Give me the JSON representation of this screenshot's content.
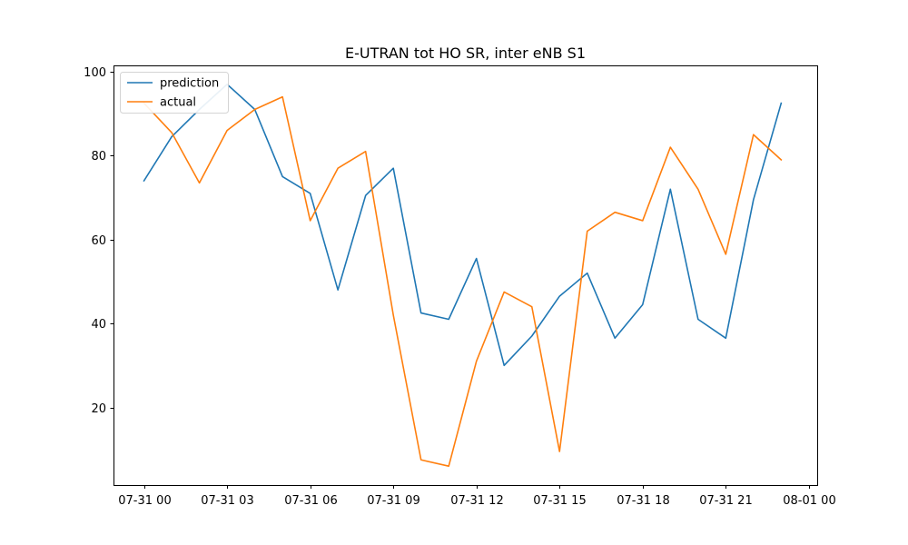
{
  "chart_data": {
    "type": "line",
    "title": "E-UTRAN tot HO SR, inter eNB S1",
    "xlabel": "",
    "ylabel": "",
    "x_ticks": [
      "07-31 00",
      "07-31 03",
      "07-31 06",
      "07-31 09",
      "07-31 12",
      "07-31 15",
      "07-31 18",
      "07-31 21",
      "08-01 00"
    ],
    "x": [
      "07-31 00",
      "07-31 01",
      "07-31 02",
      "07-31 03",
      "07-31 04",
      "07-31 05",
      "07-31 06",
      "07-31 07",
      "07-31 08",
      "07-31 09",
      "07-31 10",
      "07-31 11",
      "07-31 12",
      "07-31 13",
      "07-31 14",
      "07-31 15",
      "07-31 16",
      "07-31 17",
      "07-31 18",
      "07-31 19",
      "07-31 20",
      "07-31 21",
      "07-31 22",
      "07-31 23"
    ],
    "xlim": [
      "07-30 22:54",
      "08-01 00:18"
    ],
    "ylim": [
      1.5,
      101.5
    ],
    "y_ticks": [
      20,
      40,
      60,
      80,
      100
    ],
    "grid": false,
    "legend_position": "upper left",
    "series": [
      {
        "name": "prediction",
        "color": "#1f77b4",
        "values": [
          74.0,
          84.5,
          91.0,
          97.0,
          91.0,
          75.0,
          71.0,
          48.0,
          70.5,
          77.0,
          42.5,
          41.0,
          55.5,
          30.0,
          37.0,
          46.5,
          52.0,
          36.5,
          44.5,
          72.0,
          41.0,
          36.5,
          69.5,
          92.5
        ]
      },
      {
        "name": "actual",
        "color": "#ff7f0e",
        "values": [
          92.5,
          85.5,
          73.5,
          86.0,
          91.0,
          94.0,
          64.5,
          77.0,
          81.0,
          42.0,
          7.5,
          6.0,
          31.0,
          47.5,
          44.0,
          9.5,
          62.0,
          66.5,
          64.5,
          82.0,
          72.0,
          56.5,
          85.0,
          79.0
        ]
      }
    ]
  }
}
